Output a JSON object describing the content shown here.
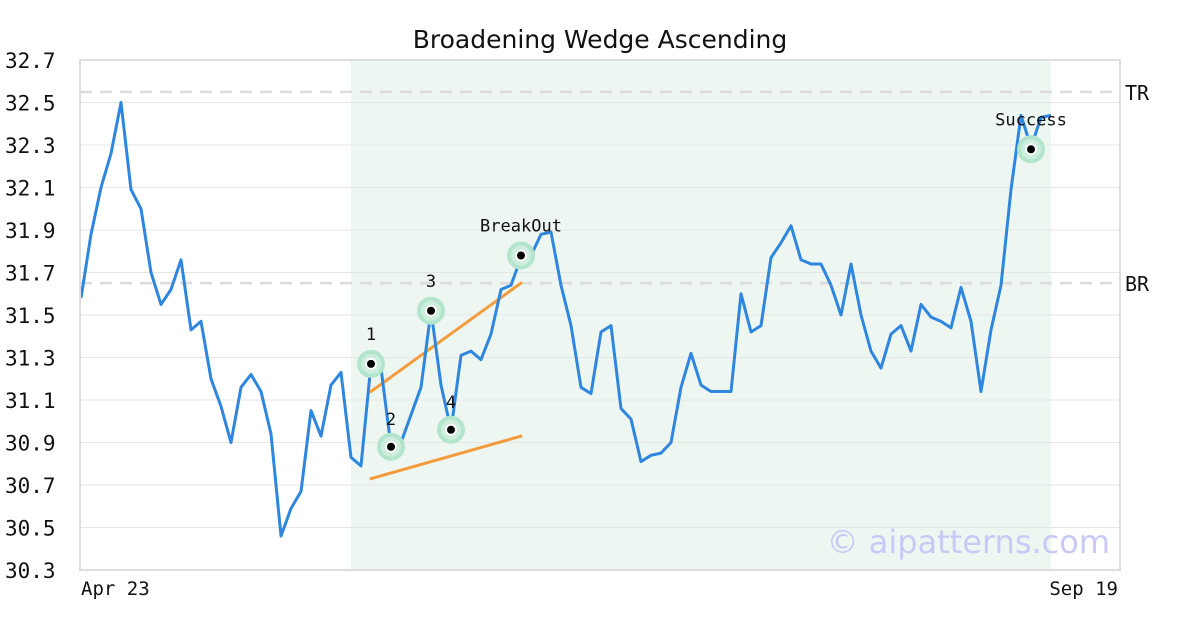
{
  "chart_data": {
    "type": "line",
    "title": "Broadening Wedge Ascending",
    "xlabel": "",
    "ylabel": "",
    "ylim": [
      30.3,
      32.7
    ],
    "yticks": [
      "30.3",
      "30.5",
      "30.7",
      "30.9",
      "31.1",
      "31.3",
      "31.5",
      "31.7",
      "31.9",
      "32.1",
      "32.3",
      "32.5",
      "32.7"
    ],
    "x_start_label": "Apr 23",
    "x_end_label": "Sep 19",
    "grid": true,
    "pattern_window": [
      27,
      97
    ],
    "series": [
      {
        "color": "#2e86de",
        "values": [
          31.58,
          31.88,
          32.1,
          32.26,
          32.5,
          32.09,
          32.0,
          31.7,
          31.55,
          31.62,
          31.76,
          31.43,
          31.47,
          31.2,
          31.07,
          30.9,
          31.16,
          31.22,
          31.14,
          30.94,
          30.46,
          30.59,
          30.67,
          31.05,
          30.93,
          31.17,
          31.23,
          30.83,
          30.79,
          31.27,
          31.25,
          30.88,
          30.9,
          31.03,
          31.16,
          31.52,
          31.17,
          30.96,
          31.31,
          31.33,
          31.29,
          31.41,
          31.62,
          31.64,
          31.77,
          31.78,
          31.88,
          31.89,
          31.64,
          31.45,
          31.16,
          31.13,
          31.42,
          31.45,
          31.06,
          31.01,
          30.81,
          30.84,
          30.85,
          30.9,
          31.16,
          31.32,
          31.17,
          31.14,
          31.14,
          31.14,
          31.6,
          31.42,
          31.45,
          31.77,
          31.84,
          31.92,
          31.76,
          31.74,
          31.74,
          31.64,
          31.5,
          31.74,
          31.5,
          31.33,
          31.25,
          31.41,
          31.45,
          31.33,
          31.55,
          31.49,
          31.47,
          31.44,
          31.63,
          31.47,
          31.14,
          31.43,
          31.64,
          32.09,
          32.44,
          32.29,
          32.43,
          32.44
        ]
      }
    ],
    "reference_lines": [
      {
        "label": "TR",
        "value": 32.55
      },
      {
        "label": "BR",
        "value": 31.65
      }
    ],
    "trend_lines": [
      {
        "color": "#f39c3d",
        "from": [
          29,
          31.14
        ],
        "to": [
          44,
          31.65
        ]
      },
      {
        "color": "#f39c3d",
        "from": [
          29,
          30.73
        ],
        "to": [
          44,
          30.93
        ]
      }
    ],
    "points": [
      {
        "label": "1",
        "x": 29,
        "y": 31.27
      },
      {
        "label": "2",
        "x": 31,
        "y": 30.88
      },
      {
        "label": "3",
        "x": 35,
        "y": 31.52
      },
      {
        "label": "4",
        "x": 37,
        "y": 30.96
      },
      {
        "label": "BreakOut",
        "x": 44,
        "y": 31.78
      },
      {
        "label": "Success",
        "x": 95,
        "y": 32.28
      }
    ],
    "watermark": "© aipatterns.com"
  }
}
